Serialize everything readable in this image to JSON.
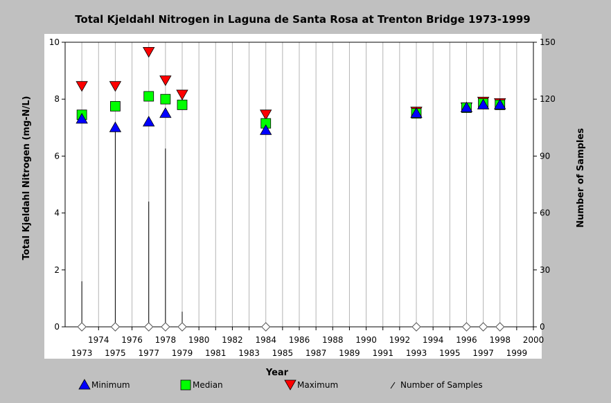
{
  "chart_data": {
    "type": "scatter",
    "title": "Total Kjeldahl Nitrogen in Laguna de Santa Rosa at Trenton Bridge 1973-1999",
    "xlabel": "Year",
    "ylabel": "Total Kjeldahl Nitrogen (mg-N/L)",
    "y2label": "Number of Samples",
    "xlim": [
      1972,
      2000
    ],
    "ylim": [
      0,
      10
    ],
    "y2lim": [
      0,
      150
    ],
    "x_ticks_lower": [
      "1973",
      "1975",
      "1977",
      "1979",
      "1981",
      "1983",
      "1985",
      "1987",
      "1989",
      "1991",
      "1993",
      "1995",
      "1997",
      "1999"
    ],
    "x_ticks_upper": [
      "1974",
      "1976",
      "1978",
      "1980",
      "1982",
      "1984",
      "1986",
      "1988",
      "1990",
      "1992",
      "1994",
      "1996",
      "1998",
      "2000"
    ],
    "y_ticks": [
      "0",
      "2",
      "4",
      "6",
      "8",
      "10"
    ],
    "y2_ticks": [
      "0",
      "30",
      "60",
      "90",
      "120",
      "150"
    ],
    "grid": true,
    "legend_position": "bottom",
    "colors": {
      "minimum": "#0000ff",
      "median": "#00ff00",
      "maximum": "#ff0000",
      "samples": "#000000"
    },
    "series": [
      {
        "name": "Minimum",
        "marker": "triangle-up",
        "points": [
          [
            1973,
            7.3
          ],
          [
            1975,
            7.0
          ],
          [
            1977,
            7.2
          ],
          [
            1978,
            7.5
          ],
          [
            1984,
            6.9
          ],
          [
            1993,
            7.5
          ],
          [
            1996,
            7.7
          ],
          [
            1997,
            7.8
          ],
          [
            1998,
            7.8
          ]
        ]
      },
      {
        "name": "Median",
        "marker": "square",
        "points": [
          [
            1973,
            7.45
          ],
          [
            1975,
            7.75
          ],
          [
            1977,
            8.1
          ],
          [
            1978,
            8.0
          ],
          [
            1979,
            7.8
          ],
          [
            1984,
            7.15
          ],
          [
            1993,
            7.5
          ],
          [
            1996,
            7.7
          ],
          [
            1997,
            7.85
          ],
          [
            1998,
            7.8
          ]
        ]
      },
      {
        "name": "Maximum",
        "marker": "triangle-down",
        "points": [
          [
            1973,
            8.45
          ],
          [
            1975,
            8.45
          ],
          [
            1977,
            9.65
          ],
          [
            1978,
            8.65
          ],
          [
            1979,
            8.15
          ],
          [
            1984,
            7.45
          ],
          [
            1993,
            7.55
          ],
          [
            1996,
            7.7
          ],
          [
            1997,
            7.9
          ],
          [
            1998,
            7.85
          ]
        ]
      },
      {
        "name": "Number of Samples",
        "marker": "diamond",
        "axis": "right",
        "points": [
          [
            1973,
            24
          ],
          [
            1975,
            105
          ],
          [
            1977,
            66
          ],
          [
            1978,
            94
          ],
          [
            1979,
            8
          ],
          [
            1984,
            1
          ],
          [
            1993,
            1
          ],
          [
            1996,
            1
          ],
          [
            1997,
            1
          ],
          [
            1998,
            1
          ]
        ]
      }
    ]
  }
}
